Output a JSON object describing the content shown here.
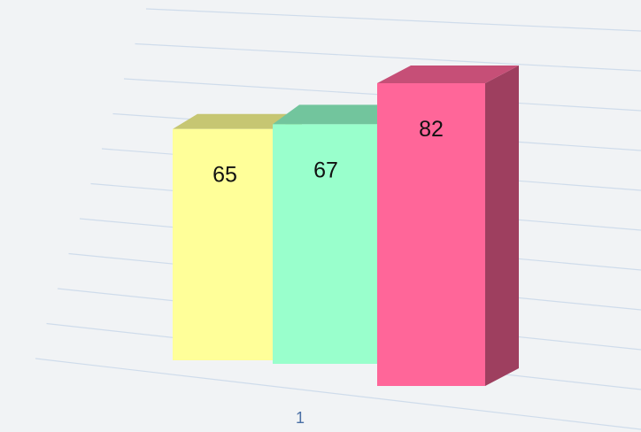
{
  "chart_data": {
    "type": "bar",
    "categories": [
      "1"
    ],
    "series": [
      {
        "values": [
          65
        ],
        "color": "#ffff99",
        "top_color": "#c6c672",
        "side_color": "#a6a651"
      },
      {
        "values": [
          67
        ],
        "color": "#99ffcc",
        "top_color": "#72c59d",
        "side_color": "#5fae89"
      },
      {
        "values": [
          82
        ],
        "color": "#ff6699",
        "top_color": "#c64f77",
        "side_color": "#9e3f5f"
      }
    ],
    "title": "",
    "xlabel": "",
    "ylabel": "",
    "ylim": [
      0,
      100
    ],
    "grid": true,
    "legend": "none",
    "style": "3d"
  }
}
